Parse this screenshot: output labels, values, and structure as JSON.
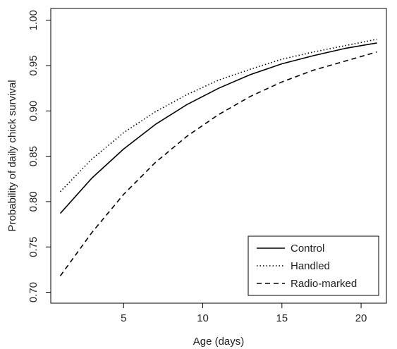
{
  "chart_data": {
    "type": "line",
    "title": "",
    "xlabel": "Age (days)",
    "ylabel": "Probability of daily chick survival",
    "xlim": [
      0.4,
      21.6
    ],
    "ylim": [
      0.688,
      1.013
    ],
    "xticks": [
      5,
      10,
      15,
      20
    ],
    "xtick_labels": [
      "5",
      "10",
      "15",
      "20"
    ],
    "yticks": [
      0.7,
      0.75,
      0.8,
      0.85,
      0.9,
      0.95,
      1.0
    ],
    "ytick_labels": [
      "0.70",
      "0.75",
      "0.80",
      "0.85",
      "0.90",
      "0.95",
      "1.00"
    ],
    "grid": false,
    "legend_position": "bottom-right",
    "x": [
      1,
      3,
      5,
      7,
      9,
      11,
      13,
      15,
      17,
      19,
      21
    ],
    "series": [
      {
        "name": "Control",
        "style": "solid",
        "color": "#000000",
        "values": [
          0.787,
          0.826,
          0.858,
          0.885,
          0.907,
          0.925,
          0.94,
          0.952,
          0.961,
          0.969,
          0.975
        ]
      },
      {
        "name": "Handled",
        "style": "dotted",
        "color": "#000000",
        "values": [
          0.811,
          0.847,
          0.876,
          0.899,
          0.918,
          0.934,
          0.946,
          0.957,
          0.965,
          0.972,
          0.979
        ]
      },
      {
        "name": "Radio-marked",
        "style": "dashed",
        "color": "#000000",
        "values": [
          0.718,
          0.766,
          0.808,
          0.843,
          0.872,
          0.896,
          0.916,
          0.932,
          0.945,
          0.955,
          0.965
        ]
      }
    ]
  }
}
